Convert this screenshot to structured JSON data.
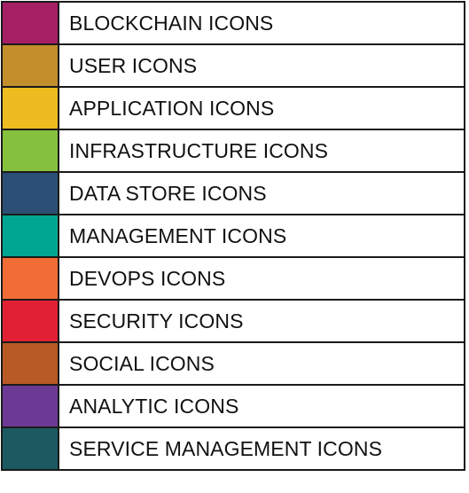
{
  "legend": {
    "items": [
      {
        "label": "BLOCKCHAIN ICONS",
        "color": "#A71F65"
      },
      {
        "label": "USER ICONS",
        "color": "#C28F2C"
      },
      {
        "label": "APPLICATION ICONS",
        "color": "#ECBC20"
      },
      {
        "label": "INFRASTRUCTURE ICONS",
        "color": "#86C13D"
      },
      {
        "label": "DATA STORE ICONS",
        "color": "#2C5075"
      },
      {
        "label": "MANAGEMENT ICONS",
        "color": "#00A691"
      },
      {
        "label": "DEVOPS ICONS",
        "color": "#F26D35"
      },
      {
        "label": "SECURITY ICONS",
        "color": "#E12133"
      },
      {
        "label": "SOCIAL ICONS",
        "color": "#B85A26"
      },
      {
        "label": "ANALYTIC ICONS",
        "color": "#6C3A94"
      },
      {
        "label": "SERVICE MANAGEMENT ICONS",
        "color": "#1C5A62"
      }
    ]
  }
}
